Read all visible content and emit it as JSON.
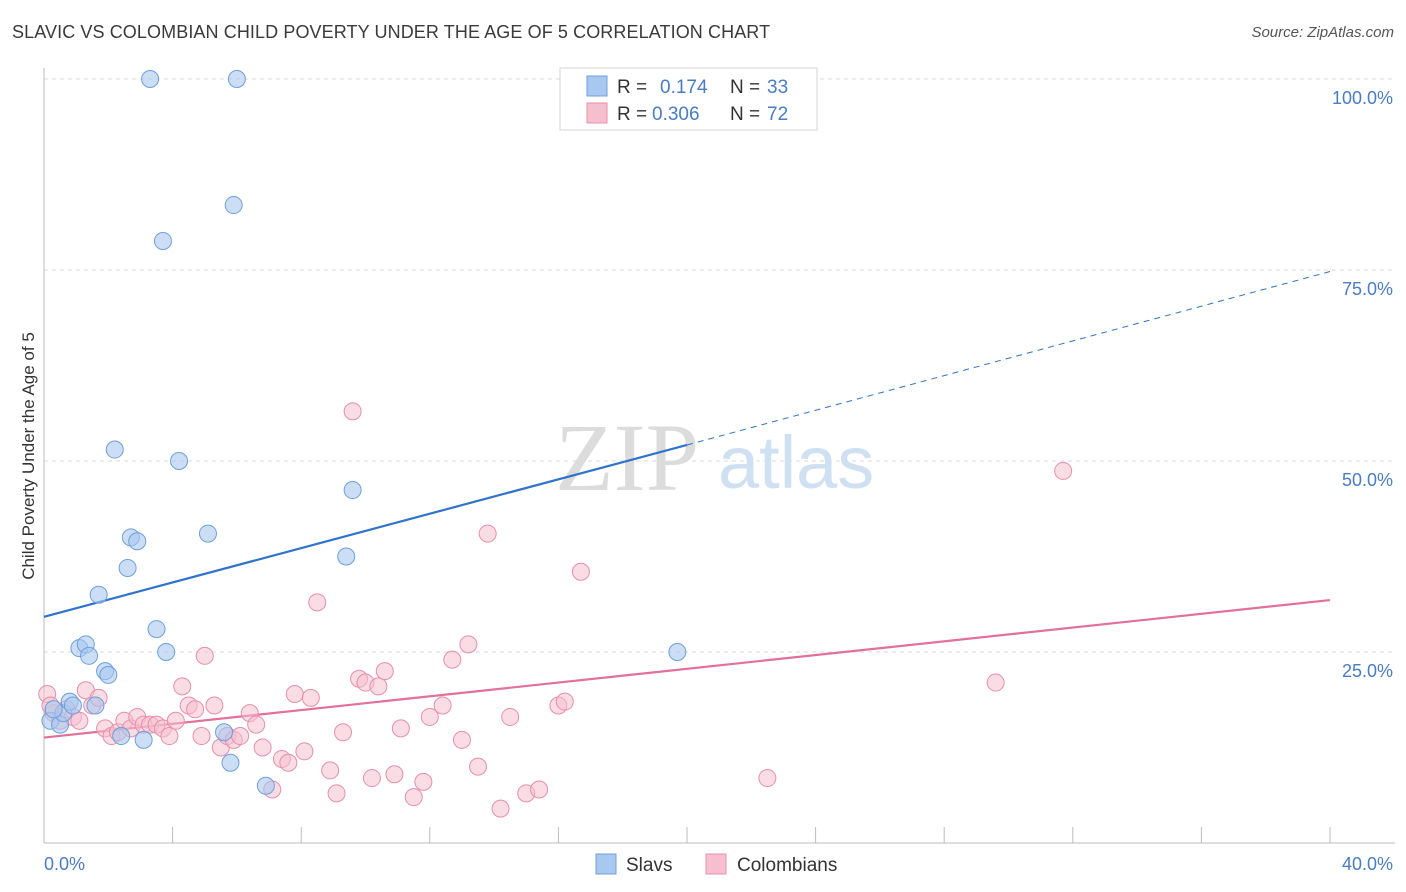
{
  "title": "SLAVIC VS COLOMBIAN CHILD POVERTY UNDER THE AGE OF 5 CORRELATION CHART",
  "source": "Source: ZipAtlas.com",
  "watermark": {
    "zip": "ZIP",
    "atlas": "atlas"
  },
  "colors": {
    "slavs_fill": "#a9c8ef",
    "slavs_stroke": "#6e9fdc",
    "slavs_line": "#2f73cc",
    "col_fill": "#f6bfd0",
    "col_stroke": "#e78fab",
    "col_line": "#e2709a",
    "tick_text": "#4a7cc4",
    "grid": "#d9d9d9"
  },
  "legend_top": {
    "rows": [
      {
        "r_label": "R =",
        "r_value": "0.174",
        "n_label": "N =",
        "n_value": "33",
        "series": "slavs"
      },
      {
        "r_label": "R =",
        "r_value": "0.306",
        "n_label": "N =",
        "n_value": "72",
        "series": "colombians"
      }
    ]
  },
  "legend_bottom": [
    "Slavs",
    "Colombians"
  ],
  "chart_data": {
    "type": "scatter",
    "title": "SLAVIC VS COLOMBIAN CHILD POVERTY UNDER THE AGE OF 5 CORRELATION CHART",
    "xlabel": "",
    "ylabel": "Child Poverty Under the Age of 5",
    "xlim": [
      0,
      40
    ],
    "ylim": [
      0,
      100
    ],
    "x_tick_labels": [
      "0.0%",
      "40.0%"
    ],
    "y_tick_labels": [
      "25.0%",
      "50.0%",
      "75.0%",
      "100.0%"
    ],
    "y_ticks": [
      25,
      50,
      75,
      100
    ],
    "grid": true,
    "legend_placement": "top-center",
    "series": [
      {
        "name": "Slavs",
        "r": 0.174,
        "n": 33,
        "trend": {
          "x0": 0,
          "y0": 29.6,
          "x1": 20,
          "y1": 52.1,
          "dashed_to_x": 40,
          "dashed_to_y": 74.8
        },
        "points": [
          [
            0.2,
            16.0
          ],
          [
            0.5,
            15.5
          ],
          [
            0.6,
            17.0
          ],
          [
            0.8,
            18.5
          ],
          [
            0.9,
            18.0
          ],
          [
            1.1,
            25.5
          ],
          [
            1.3,
            26.0
          ],
          [
            1.4,
            24.5
          ],
          [
            1.6,
            18.0
          ],
          [
            1.7,
            32.5
          ],
          [
            1.9,
            22.5
          ],
          [
            2.0,
            22.0
          ],
          [
            2.2,
            51.5
          ],
          [
            2.4,
            14.0
          ],
          [
            2.6,
            36.0
          ],
          [
            2.7,
            40.0
          ],
          [
            2.9,
            39.5
          ],
          [
            3.1,
            13.5
          ],
          [
            3.3,
            100.0
          ],
          [
            3.5,
            28.0
          ],
          [
            3.7,
            78.8
          ],
          [
            3.8,
            25.0
          ],
          [
            4.2,
            50.0
          ],
          [
            5.1,
            40.5
          ],
          [
            5.6,
            14.5
          ],
          [
            5.8,
            10.5
          ],
          [
            5.9,
            83.5
          ],
          [
            6.0,
            100.0
          ],
          [
            6.9,
            7.5
          ],
          [
            9.4,
            37.5
          ],
          [
            9.6,
            46.2
          ],
          [
            19.7,
            25.0
          ],
          [
            0.3,
            17.5
          ]
        ]
      },
      {
        "name": "Colombians",
        "r": 0.306,
        "n": 72,
        "trend": {
          "x0": 0,
          "y0": 13.8,
          "x1": 40,
          "y1": 31.8
        },
        "points": [
          [
            0.1,
            19.5
          ],
          [
            0.3,
            17.0
          ],
          [
            0.5,
            16.0
          ],
          [
            0.7,
            17.5
          ],
          [
            0.9,
            16.5
          ],
          [
            1.1,
            16.0
          ],
          [
            1.3,
            20.0
          ],
          [
            1.5,
            18.0
          ],
          [
            1.7,
            19.0
          ],
          [
            1.9,
            15.0
          ],
          [
            2.1,
            14.0
          ],
          [
            2.3,
            14.5
          ],
          [
            2.5,
            16.0
          ],
          [
            2.7,
            15.0
          ],
          [
            2.9,
            16.5
          ],
          [
            3.1,
            15.5
          ],
          [
            3.3,
            15.5
          ],
          [
            3.5,
            15.5
          ],
          [
            3.7,
            15.0
          ],
          [
            3.9,
            14.0
          ],
          [
            4.1,
            16.0
          ],
          [
            4.3,
            20.5
          ],
          [
            4.5,
            18.0
          ],
          [
            4.7,
            17.5
          ],
          [
            4.9,
            14.0
          ],
          [
            5.0,
            24.5
          ],
          [
            5.3,
            18.0
          ],
          [
            5.5,
            12.5
          ],
          [
            5.7,
            14.0
          ],
          [
            5.9,
            13.5
          ],
          [
            6.1,
            14.0
          ],
          [
            6.4,
            17.0
          ],
          [
            6.6,
            15.5
          ],
          [
            6.8,
            12.5
          ],
          [
            7.1,
            7.0
          ],
          [
            7.4,
            11.0
          ],
          [
            7.6,
            10.5
          ],
          [
            7.8,
            19.5
          ],
          [
            8.1,
            12.0
          ],
          [
            8.3,
            19.0
          ],
          [
            8.5,
            31.5
          ],
          [
            8.9,
            9.5
          ],
          [
            9.1,
            6.5
          ],
          [
            9.3,
            14.5
          ],
          [
            9.6,
            56.5
          ],
          [
            9.8,
            21.5
          ],
          [
            10.0,
            21.0
          ],
          [
            10.2,
            8.5
          ],
          [
            10.4,
            20.5
          ],
          [
            10.6,
            22.5
          ],
          [
            10.9,
            9.0
          ],
          [
            11.1,
            15.0
          ],
          [
            11.5,
            6.0
          ],
          [
            11.8,
            8.0
          ],
          [
            12.0,
            16.5
          ],
          [
            12.4,
            18.0
          ],
          [
            12.7,
            24.0
          ],
          [
            13.0,
            13.5
          ],
          [
            13.2,
            26.0
          ],
          [
            13.5,
            10.0
          ],
          [
            13.8,
            40.5
          ],
          [
            14.2,
            4.5
          ],
          [
            14.5,
            16.5
          ],
          [
            15.0,
            6.5
          ],
          [
            15.4,
            7.0
          ],
          [
            16.0,
            18.0
          ],
          [
            16.2,
            18.5
          ],
          [
            16.7,
            35.5
          ],
          [
            22.5,
            8.5
          ],
          [
            29.6,
            21.0
          ],
          [
            31.7,
            48.7
          ],
          [
            0.2,
            18.0
          ]
        ]
      }
    ]
  }
}
